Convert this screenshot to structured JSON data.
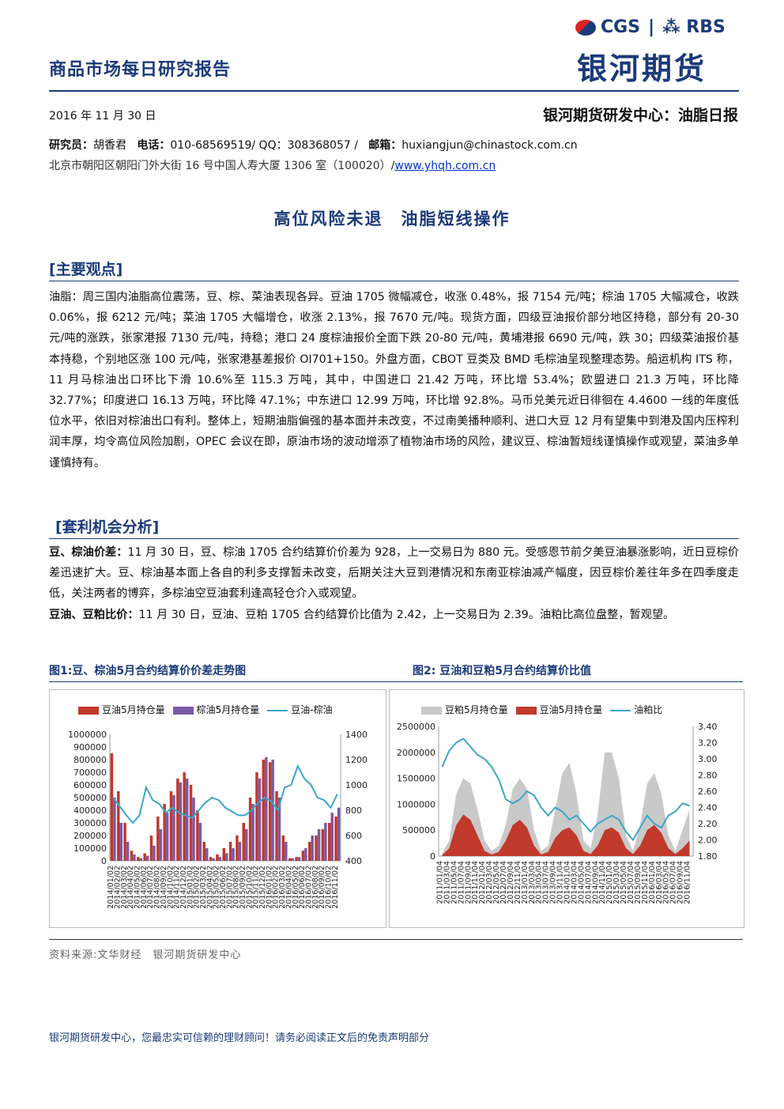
{
  "header": {
    "report_title": "商品市场每日研究报告",
    "logo_en": "CGS",
    "logo_partner": "RBS",
    "logo_cn": "银河期货",
    "date": "2016 年 11 月 30 日",
    "center_title": "银河期货研发中心：油脂日报",
    "researcher_label": "研究员：",
    "researcher": "胡香君",
    "phone_label": "电话：",
    "phone": "010-68569519/ QQ：308368057 /",
    "email_label": "邮箱：",
    "email": "huxiangjun@chinastock.com.cn",
    "address": "北京市朝阳区朝阳门外大街 16 号中国人寿大厦 1306 室（100020）/",
    "website": "www.yhqh.com.cn"
  },
  "main_title": "高位风险未退　油脂短线操作",
  "section1": {
    "heading": "[主要观点]",
    "text": "油脂：周三国内油脂高位震荡，豆、棕、菜油表现各异。豆油 1705 微幅减仓，收涨 0.48%，报 7154 元/吨；棕油 1705 大幅减仓，收跌 0.06%，报 6212 元/吨；菜油 1705 大幅增仓，收涨 2.13%，报 7670 元/吨。现货方面，四级豆油报价部分地区持稳，部分有 20-30 元/吨的涨跌，张家港报 7130 元/吨，持稳；港口 24 度棕油报价全面下跌 20-80 元/吨，黄埔港报 6690 元/吨，跌 30；四级菜油报价基本持稳，个别地区涨 100 元/吨，张家港基差报价 OI701+150。外盘方面，CBOT 豆类及 BMD 毛棕油呈现整理态势。船运机构 ITS 称，11 月马棕油出口环比下滑 10.6%至 115.3 万吨，其中，中国进口 21.42 万吨，环比增 53.4%；欧盟进口 21.3 万吨，环比降 32.77%；印度进口 16.13 万吨，环比降 47.1%；中东进口 12.99 万吨，环比增 92.8%。马币兑美元近日徘徊在 4.4600 一线的年度低位水平，依旧对棕油出口有利。整体上，短期油脂偏强的基本面并未改变，不过南美播种顺利、进口大豆 12 月有望集中到港及国内压榨利润丰厚，均令高位风险加剧，OPEC 会议在即，原油市场的波动增添了植物油市场的风险，建议豆、棕油暂短线谨慎操作或观望，菜油多单谨慎持有。"
  },
  "section2": {
    "heading": "[套利机会分析]",
    "p1_label": "豆、棕油价差：",
    "p1_text": "11 月 30 日，豆、棕油 1705 合约结算价价差为 928，上一交易日为 880 元。受感恩节前夕美豆油暴涨影响，近日豆棕价差迅速扩大。豆、棕油基本面上各自的利多支撑暂未改变，后期关注大豆到港情况和东南亚棕油减产幅度，因豆棕价差往年多在四季度走低，关注两者的博弈，多棕油空豆油套利逢高轻仓介入或观望。",
    "p2_label": "豆油、豆粕比价：",
    "p2_text": "11 月 30 日，豆油、豆粕 1705 合约结算价比值为 2.42，上一交易日为 2.39。油粕比高位盘整，暂观望。"
  },
  "figures": {
    "fig1_caption": "图1:豆、棕油5月合约结算价价差走势图",
    "fig2_caption": "图2: 豆油和豆粕5月合约结算价比值"
  },
  "chart_data": [
    {
      "type": "bar",
      "title": "图1:豆、棕油5月合约结算价价差走势图",
      "legend": [
        "豆油5月持仓量",
        "棕油5月持仓量",
        "豆油-棕油"
      ],
      "colors": {
        "bar1": "#c0392b",
        "bar2": "#7b5aa6",
        "line": "#3aa6c8"
      },
      "ylim_left": [
        0,
        1000000
      ],
      "yticks_left": [
        "1000000",
        "900000",
        "800000",
        "700000",
        "600000",
        "500000",
        "400000",
        "300000",
        "200000",
        "100000",
        "0"
      ],
      "ylim_right": [
        400,
        1400
      ],
      "yticks_right": [
        "1400",
        "1200",
        "1000",
        "800",
        "600",
        "400"
      ],
      "x_labels": [
        "2014/01/02",
        "2014/02/02",
        "2014/03/02",
        "2014/04/02",
        "2014/05/02",
        "2014/06/02",
        "2014/07/02",
        "2014/08/02",
        "2014/09/02",
        "2014/10/02",
        "2014/11/02",
        "2014/12/02",
        "2015/01/02",
        "2015/02/02",
        "2015/03/02",
        "2015/04/02",
        "2015/05/02",
        "2015/06/02",
        "2015/07/02",
        "2015/08/02",
        "2015/09/02",
        "2015/10/02",
        "2015/11/02",
        "2015/12/02",
        "2016/01/02",
        "2016/02/02",
        "2016/03/02",
        "2016/04/02",
        "2016/05/02",
        "2016/06/02",
        "2016/07/02",
        "2016/08/02",
        "2016/09/02",
        "2016/10/02",
        "2016/11/02"
      ],
      "series": [
        {
          "name": "豆油5月持仓量",
          "values": [
            850000,
            550000,
            300000,
            80000,
            30000,
            60000,
            200000,
            350000,
            450000,
            550000,
            650000,
            700000,
            600000,
            400000,
            150000,
            30000,
            50000,
            100000,
            150000,
            200000,
            300000,
            500000,
            700000,
            800000,
            780000,
            550000,
            200000,
            20000,
            30000,
            80000,
            150000,
            200000,
            250000,
            300000,
            350000
          ]
        },
        {
          "name": "棕油5月持仓量",
          "values": [
            500000,
            300000,
            150000,
            50000,
            20000,
            40000,
            120000,
            250000,
            380000,
            520000,
            620000,
            650000,
            500000,
            300000,
            100000,
            20000,
            30000,
            60000,
            100000,
            150000,
            250000,
            450000,
            650000,
            820000,
            800000,
            500000,
            150000,
            20000,
            30000,
            100000,
            200000,
            250000,
            300000,
            380000,
            420000
          ]
        },
        {
          "name": "豆油-棕油",
          "values": [
            900,
            830,
            760,
            700,
            760,
            980,
            880,
            850,
            780,
            820,
            780,
            760,
            740,
            800,
            860,
            900,
            880,
            820,
            790,
            760,
            760,
            800,
            860,
            900,
            870,
            800,
            980,
            1000,
            1150,
            1050,
            1000,
            900,
            880,
            820,
            928
          ]
        }
      ]
    },
    {
      "type": "area",
      "title": "图2: 豆油和豆粕5月合约结算价比值",
      "legend": [
        "豆粕5月持仓量",
        "豆油5月持仓量",
        "油粕比"
      ],
      "colors": {
        "area1": "#c9c9c9",
        "area2": "#c0392b",
        "line": "#3aa6c8"
      },
      "ylim_left": [
        0,
        2500000
      ],
      "yticks_left": [
        "2500000",
        "2000000",
        "1500000",
        "1000000",
        "500000",
        "0"
      ],
      "ylim_right": [
        1.8,
        3.4
      ],
      "yticks_right": [
        "3.40",
        "3.20",
        "3.00",
        "2.80",
        "2.60",
        "2.40",
        "2.20",
        "2.00",
        "1.80"
      ],
      "x_labels": [
        "2011/01/04",
        "2011/03/04",
        "2011/05/04",
        "2011/07/04",
        "2011/09/04",
        "2011/11/04",
        "2012/01/04",
        "2012/03/04",
        "2012/05/04",
        "2012/07/04",
        "2012/09/04",
        "2012/11/04",
        "2013/01/04",
        "2013/03/04",
        "2013/05/04",
        "2013/07/04",
        "2013/09/04",
        "2013/11/04",
        "2014/01/04",
        "2014/03/04",
        "2014/05/04",
        "2014/07/04",
        "2014/09/04",
        "2014/11/04",
        "2015/01/04",
        "2015/03/04",
        "2015/05/04",
        "2015/07/04",
        "2015/09/04",
        "2015/11/04",
        "2016/01/04",
        "2016/03/04",
        "2016/05/04",
        "2016/07/04",
        "2016/09/04",
        "2016/11/04"
      ],
      "series": [
        {
          "name": "豆粕5月持仓量",
          "values": [
            50000,
            300000,
            1200000,
            1500000,
            1400000,
            900000,
            300000,
            100000,
            200000,
            600000,
            1300000,
            1500000,
            1300000,
            500000,
            100000,
            200000,
            900000,
            1600000,
            1800000,
            1200000,
            300000,
            150000,
            800000,
            2000000,
            2000000,
            1500000,
            400000,
            100000,
            600000,
            1400000,
            1600000,
            1200000,
            400000,
            100000,
            500000,
            900000
          ]
        },
        {
          "name": "豆油5月持仓量",
          "values": [
            20000,
            150000,
            600000,
            800000,
            700000,
            400000,
            100000,
            30000,
            80000,
            300000,
            600000,
            700000,
            550000,
            200000,
            30000,
            80000,
            350000,
            500000,
            550000,
            400000,
            100000,
            40000,
            200000,
            500000,
            550000,
            450000,
            150000,
            40000,
            200000,
            500000,
            600000,
            450000,
            150000,
            40000,
            150000,
            300000
          ]
        },
        {
          "name": "油粕比",
          "values": [
            2.9,
            3.1,
            3.2,
            3.25,
            3.15,
            3.05,
            3.0,
            2.9,
            2.75,
            2.5,
            2.45,
            2.5,
            2.6,
            2.55,
            2.4,
            2.3,
            2.4,
            2.35,
            2.25,
            2.3,
            2.2,
            2.1,
            2.2,
            2.25,
            2.3,
            2.25,
            2.1,
            2.0,
            2.15,
            2.3,
            2.2,
            2.15,
            2.3,
            2.35,
            2.45,
            2.42
          ]
        }
      ]
    }
  ],
  "source": "资料来源:文华财经　银河期货研发中心",
  "footer": "银河期货研发中心，您最忠实可信赖的理财顾问！请务必阅读正文后的免责声明部分"
}
